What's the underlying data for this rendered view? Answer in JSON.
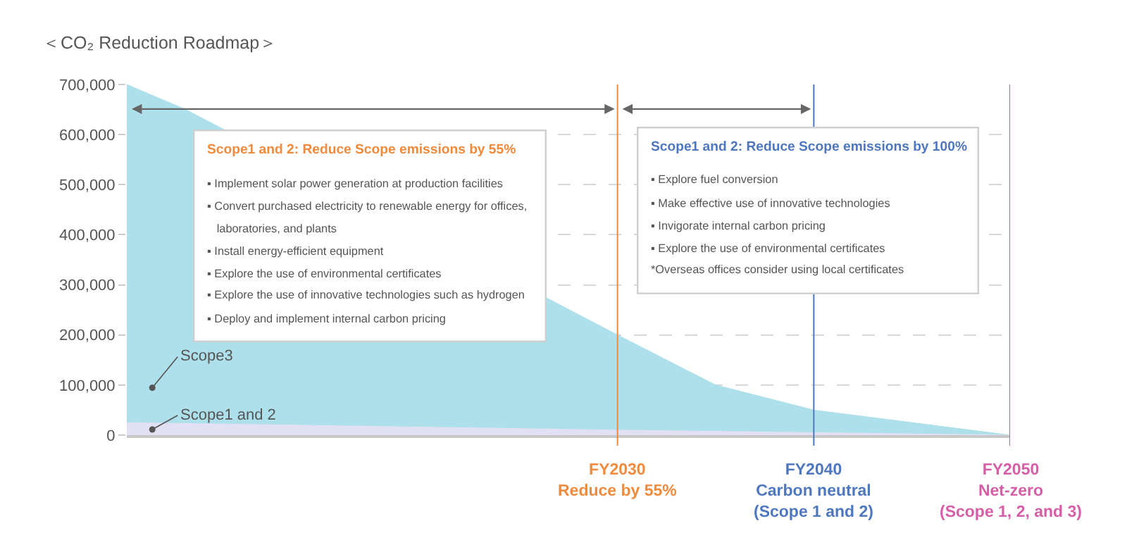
{
  "chart_data": {
    "type": "area",
    "title": "＜CO₂ Reduction Roadmap＞",
    "x": [
      2005,
      2008,
      2030,
      2035,
      2040,
      2050
    ],
    "series": [
      {
        "name": "Scope3",
        "color": "#aee0eb",
        "values": [
          700000,
          650000,
          200000,
          100000,
          50000,
          0
        ]
      },
      {
        "name": "Scope1 and 2",
        "color": "#e2e0f3",
        "x": [
          2005,
          2030,
          2050
        ],
        "values": [
          25000,
          10000,
          0
        ]
      }
    ],
    "xlim": [
      2005,
      2050
    ],
    "ylim": [
      0,
      700000
    ],
    "yticks": [
      {
        "value": 0,
        "label": "0"
      },
      {
        "value": 100000,
        "label": "100,000"
      },
      {
        "value": 200000,
        "label": "200,000"
      },
      {
        "value": 300000,
        "label": "300,000"
      },
      {
        "value": 400000,
        "label": "400,000"
      },
      {
        "value": 500000,
        "label": "500,000"
      },
      {
        "value": 600000,
        "label": "600,000"
      },
      {
        "value": 700000,
        "label": "700,000"
      }
    ],
    "tick_labels": "y",
    "grid": "y",
    "legend": false,
    "marker": "none",
    "ref_lines": [
      {
        "axis": "x",
        "value": 2030,
        "label": "FY2030\nReduce by 55%",
        "color": "#f08a3c"
      },
      {
        "axis": "x",
        "value": 2040,
        "label": "FY2040\nCarbon neutral\n(Scope 1 and 2)",
        "color": "#4f77bf"
      },
      {
        "axis": "x",
        "value": 2050,
        "label": "FY2050\nNet-zero\n(Scope 1, 2, and 3)",
        "color": "#d65ea6"
      }
    ],
    "annotations": [
      "Scope1 and 2: Reduce Scope emissions by 55%\n▪ Implement solar power generation at production facilities\n▪ Convert purchased electricity to renewable energy for offices,\n  laboratories, and plants\n▪ Install energy-efficient equipment\n▪ Explore the use of environmental certificates\n▪ Explore the use of innovative technologies such as hydrogen\n▪ Deploy and implement internal carbon pricing",
      "Scope1 and 2: Reduce Scope emissions by 100%\n▪ Explore fuel conversion\n▪ Make effective use of innovative technologies\n▪ Invigorate internal carbon pricing\n▪ Explore the use of environmental certificates\n*Overseas offices consider using local certificates"
    ]
  }
}
